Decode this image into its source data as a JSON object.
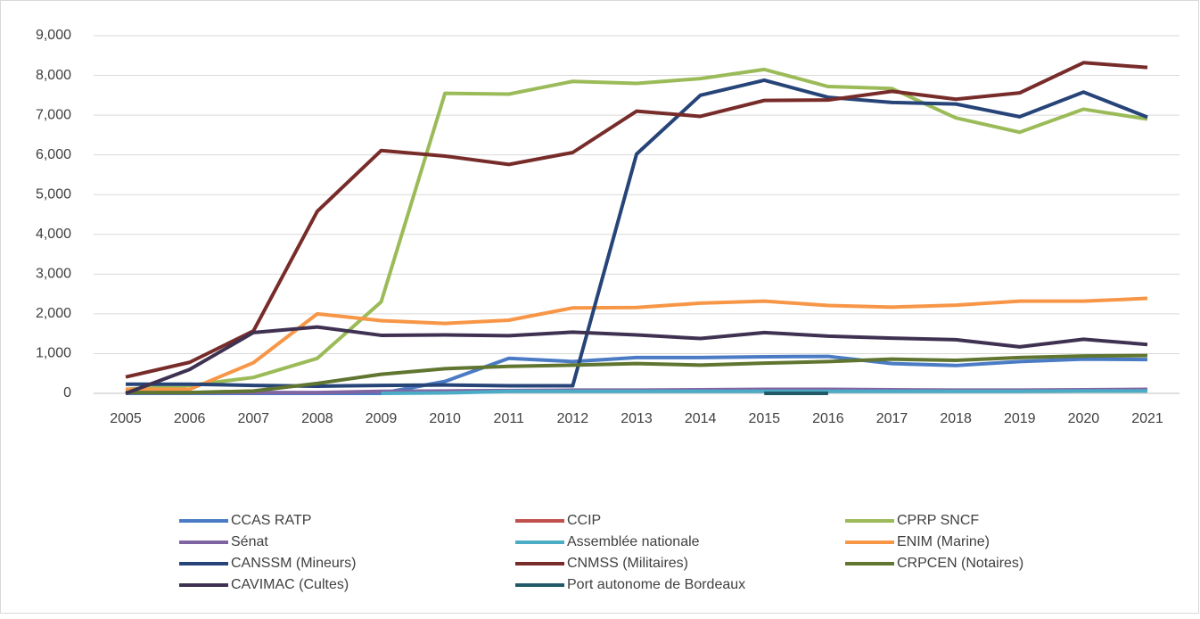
{
  "chart_data": {
    "type": "line",
    "x": [
      2005,
      2006,
      2007,
      2008,
      2009,
      2010,
      2011,
      2012,
      2013,
      2014,
      2015,
      2016,
      2017,
      2018,
      2019,
      2020,
      2021
    ],
    "xlim": [
      2005,
      2021
    ],
    "xticks": [
      2005,
      2006,
      2007,
      2008,
      2009,
      2010,
      2011,
      2012,
      2013,
      2014,
      2015,
      2016,
      2017,
      2018,
      2019,
      2020,
      2021
    ],
    "ylim": [
      0,
      9000
    ],
    "yticks": [
      0,
      {
        "value": 1000,
        "label": "1,000"
      },
      {
        "value": 2000,
        "label": "2,000"
      },
      {
        "value": 3000,
        "label": "3,000"
      },
      {
        "value": 4000,
        "label": "4,000"
      },
      {
        "value": 5000,
        "label": "5,000"
      },
      {
        "value": 6000,
        "label": "6,000"
      },
      {
        "value": 7000,
        "label": "7,000"
      },
      {
        "value": 8000,
        "label": "8,000"
      },
      {
        "value": 9000,
        "label": "9,000"
      }
    ],
    "grid": true,
    "legend": "bottom",
    "series": [
      {
        "name": "CCAS RATP",
        "color": "#4a7bc4",
        "values": [
          0,
          0,
          0,
          0,
          0,
          300,
          880,
          800,
          900,
          900,
          920,
          930,
          750,
          700,
          800,
          860,
          850
        ]
      },
      {
        "name": "CCIP",
        "color": "#c0504d",
        "values": [
          null,
          null,
          null,
          null,
          null,
          null,
          null,
          null,
          null,
          null,
          null,
          null,
          null,
          null,
          null,
          null,
          null
        ]
      },
      {
        "name": "CPRP SNCF",
        "color": "#9bbb59",
        "values": [
          100,
          200,
          400,
          880,
          2300,
          7550,
          7530,
          7850,
          7800,
          7920,
          8150,
          7720,
          7670,
          6930,
          6570,
          7150,
          6900
        ]
      },
      {
        "name": "Sénat",
        "color": "#8064a2",
        "values": [
          20,
          20,
          20,
          20,
          50,
          60,
          70,
          80,
          80,
          90,
          100,
          100,
          90,
          80,
          80,
          90,
          100
        ]
      },
      {
        "name": "Assemblée nationale",
        "color": "#4bacc6",
        "values": [
          null,
          null,
          null,
          null,
          0,
          10,
          50,
          50,
          50,
          50,
          50,
          50,
          50,
          50,
          50,
          60,
          60
        ]
      },
      {
        "name": "ENIM (Marine)",
        "color": "#f79646",
        "values": [
          100,
          100,
          770,
          2000,
          1830,
          1760,
          1840,
          2150,
          2160,
          2270,
          2320,
          2210,
          2170,
          2220,
          2320,
          2320,
          2390
        ]
      },
      {
        "name": "CANSSM (Mineurs)",
        "color": "#264478",
        "values": [
          230,
          230,
          200,
          180,
          200,
          210,
          190,
          190,
          6020,
          7500,
          7880,
          7450,
          7320,
          7280,
          6960,
          7580,
          6950
        ]
      },
      {
        "name": "CNMSS (Militaires)",
        "color": "#772c2a",
        "values": [
          410,
          780,
          1570,
          4580,
          6110,
          5970,
          5760,
          6060,
          7100,
          6970,
          7370,
          7380,
          7600,
          7400,
          7560,
          8320,
          8200
        ]
      },
      {
        "name": "CRPCEN (Notaires)",
        "color": "#5f7530",
        "values": [
          20,
          20,
          60,
          250,
          480,
          620,
          680,
          710,
          750,
          710,
          760,
          800,
          860,
          830,
          900,
          940,
          950
        ]
      },
      {
        "name": "CAVIMAC (Cultes)",
        "color": "#3f3151",
        "values": [
          0,
          600,
          1530,
          1670,
          1460,
          1470,
          1450,
          1540,
          1470,
          1380,
          1530,
          1440,
          1390,
          1350,
          1170,
          1360,
          1230
        ]
      },
      {
        "name": "Port autonome de Bordeaux",
        "color": "#215968",
        "values": [
          null,
          null,
          null,
          null,
          null,
          null,
          null,
          null,
          null,
          null,
          0,
          0,
          null,
          null,
          null,
          null,
          null
        ]
      }
    ]
  }
}
